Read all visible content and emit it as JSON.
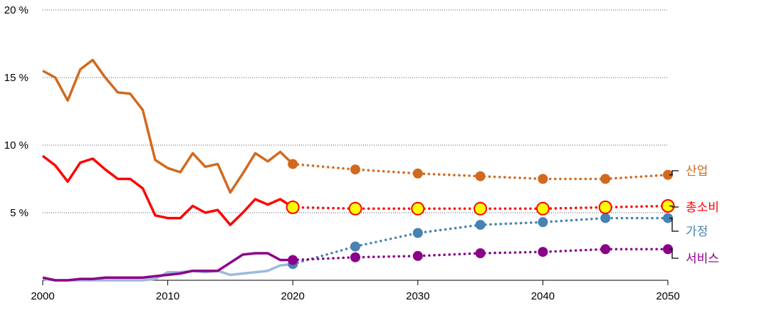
{
  "chart_data": {
    "type": "line",
    "title": "",
    "xlabel": "",
    "ylabel": "",
    "xlim": [
      2000,
      2050
    ],
    "ylim": [
      0,
      20
    ],
    "x_ticks": [
      2000,
      2010,
      2020,
      2030,
      2040,
      2050
    ],
    "x_tick_labels": [
      "2000",
      "2010",
      "2020",
      "2030",
      "2040",
      "2050"
    ],
    "y_ticks": [
      5,
      10,
      15,
      20
    ],
    "y_tick_labels": [
      "5 %",
      "10 %",
      "15 %",
      "20 %"
    ],
    "grid": "horizontal dotted",
    "series": [
      {
        "name": "산업",
        "color": "#D2691E",
        "historical": {
          "x": [
            2000,
            2001,
            2002,
            2003,
            2004,
            2005,
            2006,
            2007,
            2008,
            2009,
            2010,
            2011,
            2012,
            2013,
            2014,
            2015,
            2016,
            2017,
            2018,
            2019,
            2020
          ],
          "y": [
            15.5,
            15.0,
            13.3,
            15.6,
            16.3,
            15.0,
            13.9,
            13.8,
            12.6,
            8.9,
            8.3,
            8.0,
            9.4,
            8.4,
            8.6,
            6.5,
            7.9,
            9.4,
            8.8,
            9.5,
            8.6
          ]
        },
        "projection": {
          "x": [
            2020,
            2025,
            2030,
            2035,
            2040,
            2045,
            2050
          ],
          "y": [
            8.6,
            8.2,
            7.9,
            7.7,
            7.5,
            7.5,
            7.8
          ]
        }
      },
      {
        "name": "총소비",
        "color": "#FF0000",
        "marker_fill": "#FFFF00",
        "historical": {
          "x": [
            2000,
            2001,
            2002,
            2003,
            2004,
            2005,
            2006,
            2007,
            2008,
            2009,
            2010,
            2011,
            2012,
            2013,
            2014,
            2015,
            2016,
            2017,
            2018,
            2019,
            2020
          ],
          "y": [
            9.2,
            8.5,
            7.3,
            8.7,
            9.0,
            8.2,
            7.5,
            7.5,
            6.8,
            4.8,
            4.6,
            4.6,
            5.5,
            5.0,
            5.2,
            4.1,
            5.0,
            6.0,
            5.6,
            6.0,
            5.4
          ]
        },
        "projection": {
          "x": [
            2020,
            2025,
            2030,
            2035,
            2040,
            2045,
            2050
          ],
          "y": [
            5.4,
            5.3,
            5.3,
            5.3,
            5.3,
            5.4,
            5.5
          ]
        }
      },
      {
        "name": "가정",
        "color": "#4682B4",
        "historical_color": "#9DB9DD",
        "historical": {
          "x": [
            2000,
            2001,
            2002,
            2003,
            2004,
            2005,
            2006,
            2007,
            2008,
            2009,
            2010,
            2011,
            2012,
            2013,
            2014,
            2015,
            2016,
            2017,
            2018,
            2019,
            2020
          ],
          "y": [
            0.1,
            0.0,
            0.0,
            0.0,
            0.0,
            0.0,
            0.0,
            0.0,
            0.0,
            0.1,
            0.6,
            0.6,
            0.7,
            0.6,
            0.7,
            0.4,
            0.5,
            0.6,
            0.7,
            1.1,
            1.2
          ]
        },
        "projection": {
          "x": [
            2020,
            2025,
            2030,
            2035,
            2040,
            2045,
            2050
          ],
          "y": [
            1.2,
            2.5,
            3.5,
            4.1,
            4.3,
            4.6,
            4.6
          ]
        }
      },
      {
        "name": "서비스",
        "color": "#8B008B",
        "historical": {
          "x": [
            2000,
            2001,
            2002,
            2003,
            2004,
            2005,
            2006,
            2007,
            2008,
            2009,
            2010,
            2011,
            2012,
            2013,
            2014,
            2015,
            2016,
            2017,
            2018,
            2019,
            2020
          ],
          "y": [
            0.2,
            0.0,
            0.0,
            0.1,
            0.1,
            0.2,
            0.2,
            0.2,
            0.2,
            0.3,
            0.4,
            0.5,
            0.7,
            0.7,
            0.7,
            1.3,
            1.9,
            2.0,
            2.0,
            1.5,
            1.5
          ]
        },
        "projection": {
          "x": [
            2020,
            2025,
            2030,
            2035,
            2040,
            2045,
            2050
          ],
          "y": [
            1.5,
            1.7,
            1.8,
            2.0,
            2.1,
            2.3,
            2.3
          ]
        }
      }
    ]
  }
}
